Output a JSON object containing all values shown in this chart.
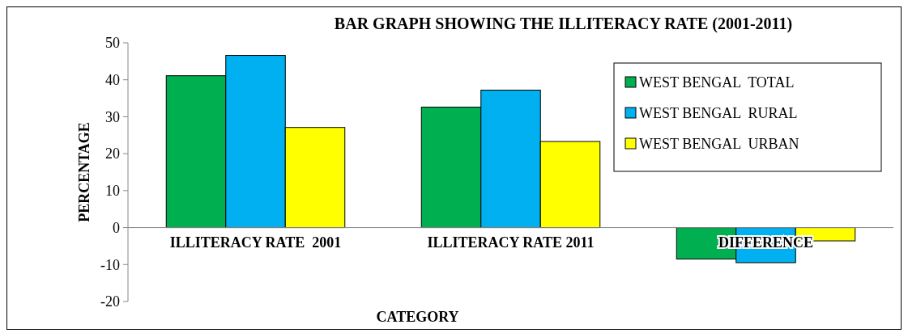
{
  "chart_data": {
    "type": "bar",
    "title": "BAR GRAPH SHOWING THE ILLITERACY RATE (2001-2011)",
    "xlabel": "CATEGORY",
    "ylabel": "PERCENTAGE",
    "categories": [
      "ILLITERACY RATE  2001",
      "ILLITERACY RATE 2011",
      "DIFFERENCE"
    ],
    "series": [
      {
        "name": "WEST BENGAL  TOTAL",
        "color": "#00b050",
        "values": [
          41.1,
          32.6,
          -8.5
        ]
      },
      {
        "name": "WEST BENGAL  RURAL",
        "color": "#00b0f0",
        "values": [
          46.6,
          37.2,
          -9.5
        ]
      },
      {
        "name": "WEST BENGAL  URBAN",
        "color": "#ffff00",
        "values": [
          27.1,
          23.3,
          -3.6
        ]
      }
    ],
    "ylim": [
      -20,
      50
    ],
    "yticks": [
      -20,
      -10,
      0,
      10,
      20,
      30,
      40,
      50
    ],
    "grid": false,
    "legend": "top right"
  }
}
